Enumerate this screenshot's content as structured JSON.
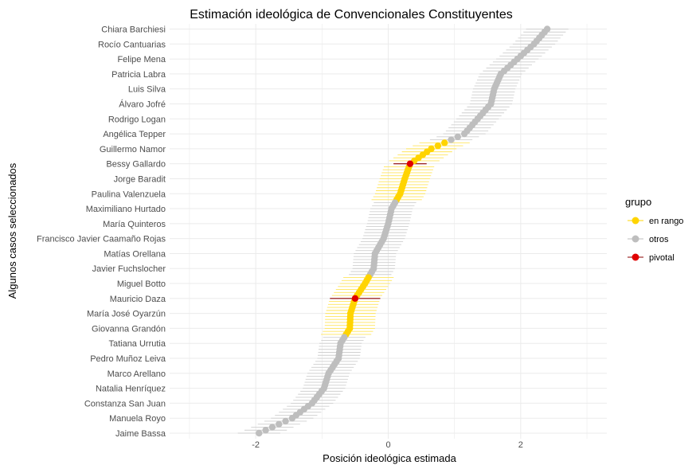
{
  "chart_data": {
    "type": "scatter",
    "title": "Estimación ideológica de Convencionales Constituyentes",
    "xlabel": "Posición ideológica estimada",
    "ylabel": "Algunos casos seleccionados",
    "xlim": [
      -3.3,
      3.3
    ],
    "x_ticks": [
      -2,
      0,
      2
    ],
    "x_tick_labels": [
      "-2",
      "0",
      "2"
    ],
    "grid": true,
    "legend": {
      "title": "grupo",
      "position": "right",
      "entries": [
        {
          "label": "en rango",
          "color": "#FFD400"
        },
        {
          "label": "otros",
          "color": "#BEBEBE"
        },
        {
          "label": "pivotal",
          "color": "#E00000"
        }
      ]
    },
    "colors": {
      "en rango": "#FFD400",
      "otros": "#BEBEBE",
      "pivotal": "#E00000",
      "pivotal_interval": "#8B0000",
      "interval_otros": "#C8C8C8"
    },
    "y_labels": [
      "Chiara Barchiesi",
      "Rocío Cantuarias",
      "Felipe Mena",
      "Patricia Labra",
      "Luis Silva",
      "Álvaro Jofré",
      "Rodrigo Logan",
      "Angélica Tepper",
      "Guillermo Namor",
      "Bessy Gallardo",
      "Jorge Baradit",
      "Paulina Valenzuela",
      "Maximiliano Hurtado",
      "María Quinteros",
      "Francisco Javier Caamaño Rojas",
      "Matías Orellana",
      "Javier Fuchslocher",
      "Miguel Botto",
      "Mauricio Daza",
      "María José Oyarzún",
      "Giovanna Grandón",
      "Tatiana Urrutia",
      "Pedro Muñoz Leiva",
      "Marco Arellano",
      "Natalia Henríquez",
      "Constanza San Juan",
      "Manuela Royo",
      "Jaime Bassa"
    ],
    "key_points": [
      {
        "x": 2.4,
        "group": "otros"
      },
      {
        "x": 2.2,
        "group": "otros"
      },
      {
        "x": 1.95,
        "group": "otros"
      },
      {
        "x": 1.7,
        "group": "otros"
      },
      {
        "x": 1.6,
        "group": "otros"
      },
      {
        "x": 1.55,
        "group": "otros"
      },
      {
        "x": 1.35,
        "group": "otros"
      },
      {
        "x": 1.15,
        "group": "otros"
      },
      {
        "x": 0.65,
        "group": "en rango"
      },
      {
        "x": 0.33,
        "group": "pivotal",
        "low": 0.08,
        "high": 0.58
      },
      {
        "x": 0.25,
        "group": "en rango"
      },
      {
        "x": 0.18,
        "group": "en rango"
      },
      {
        "x": 0.05,
        "group": "otros"
      },
      {
        "x": 0.0,
        "group": "otros"
      },
      {
        "x": -0.07,
        "group": "otros"
      },
      {
        "x": -0.2,
        "group": "otros"
      },
      {
        "x": -0.22,
        "group": "otros"
      },
      {
        "x": -0.35,
        "group": "en rango"
      },
      {
        "x": -0.5,
        "group": "pivotal",
        "low": -0.88,
        "high": -0.12
      },
      {
        "x": -0.57,
        "group": "en rango"
      },
      {
        "x": -0.58,
        "group": "en rango"
      },
      {
        "x": -0.72,
        "group": "otros"
      },
      {
        "x": -0.75,
        "group": "otros"
      },
      {
        "x": -0.9,
        "group": "otros"
      },
      {
        "x": -0.97,
        "group": "otros"
      },
      {
        "x": -1.15,
        "group": "otros"
      },
      {
        "x": -1.45,
        "group": "otros"
      },
      {
        "x": -1.95,
        "group": "otros"
      }
    ]
  }
}
